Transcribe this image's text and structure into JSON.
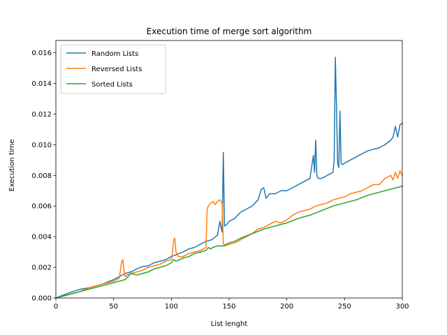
{
  "chart_data": {
    "type": "line",
    "title": "Execution time of merge sort algorithm",
    "xlabel": "List lenght",
    "ylabel": "Execution time",
    "xlim": [
      0,
      300
    ],
    "ylim": [
      0,
      0.0168
    ],
    "xticks": [
      0,
      50,
      100,
      150,
      200,
      250,
      300
    ],
    "xtick_labels": [
      "0",
      "50",
      "100",
      "150",
      "200",
      "250",
      "300"
    ],
    "yticks": [
      0,
      0.002,
      0.004,
      0.006,
      0.008,
      0.01,
      0.012,
      0.014,
      0.016
    ],
    "ytick_labels": [
      "0.000",
      "0.002",
      "0.004",
      "0.006",
      "0.008",
      "0.010",
      "0.012",
      "0.014",
      "0.016"
    ],
    "grid": false,
    "legend_position": "top-left",
    "series": [
      {
        "name": "Random Lists",
        "color": "#1f77b4",
        "x": [
          0,
          10,
          20,
          25,
          30,
          40,
          50,
          55,
          60,
          65,
          70,
          75,
          80,
          85,
          90,
          95,
          100,
          105,
          110,
          115,
          120,
          125,
          130,
          135,
          140,
          142,
          144,
          145,
          146,
          148,
          150,
          155,
          160,
          165,
          170,
          175,
          178,
          180,
          182,
          185,
          190,
          195,
          200,
          205,
          210,
          215,
          220,
          223,
          224,
          225,
          226,
          227,
          230,
          235,
          240,
          241,
          242,
          243,
          244,
          245,
          246,
          247,
          248,
          250,
          255,
          260,
          265,
          270,
          275,
          280,
          285,
          290,
          292,
          294,
          296,
          298,
          300
        ],
        "values": [
          0,
          0.0003,
          0.00055,
          0.00062,
          0.00068,
          0.0009,
          0.0012,
          0.0014,
          0.0016,
          0.0017,
          0.0019,
          0.00205,
          0.0021,
          0.0023,
          0.0024,
          0.0025,
          0.0027,
          0.00285,
          0.003,
          0.0032,
          0.0033,
          0.0035,
          0.0037,
          0.0038,
          0.0041,
          0.005,
          0.0043,
          0.0095,
          0.0047,
          0.0048,
          0.005,
          0.0052,
          0.0056,
          0.0058,
          0.006,
          0.0064,
          0.0071,
          0.0072,
          0.0065,
          0.0068,
          0.0068,
          0.007,
          0.007,
          0.0072,
          0.0074,
          0.0076,
          0.0078,
          0.0093,
          0.0082,
          0.0103,
          0.008,
          0.0078,
          0.0078,
          0.008,
          0.0082,
          0.009,
          0.0157,
          0.0125,
          0.0088,
          0.0085,
          0.0122,
          0.0088,
          0.0087,
          0.0088,
          0.009,
          0.0092,
          0.0094,
          0.0096,
          0.0097,
          0.0098,
          0.01,
          0.0103,
          0.0105,
          0.0112,
          0.0105,
          0.0113,
          0.0114
        ]
      },
      {
        "name": "Reversed Lists",
        "color": "#ff7f0e",
        "x": [
          0,
          10,
          20,
          30,
          40,
          50,
          55,
          57,
          58,
          59,
          60,
          62,
          65,
          70,
          75,
          80,
          85,
          90,
          95,
          100,
          101,
          102,
          103,
          104,
          106,
          110,
          115,
          120,
          125,
          130,
          131,
          132,
          133,
          134,
          136,
          138,
          140,
          142,
          144,
          145,
          146,
          150,
          155,
          160,
          170,
          175,
          180,
          185,
          190,
          195,
          200,
          205,
          210,
          215,
          220,
          225,
          230,
          235,
          240,
          245,
          250,
          255,
          260,
          265,
          270,
          275,
          280,
          285,
          290,
          292,
          294,
          296,
          298,
          300
        ],
        "values": [
          0,
          0.0002,
          0.0004,
          0.0007,
          0.0009,
          0.0011,
          0.0013,
          0.0024,
          0.0025,
          0.0018,
          0.0014,
          0.0015,
          0.0016,
          0.0017,
          0.0018,
          0.002,
          0.0021,
          0.0022,
          0.0024,
          0.0025,
          0.003,
          0.0038,
          0.0039,
          0.003,
          0.0027,
          0.0027,
          0.0029,
          0.003,
          0.0031,
          0.0033,
          0.0058,
          0.006,
          0.0061,
          0.0062,
          0.0063,
          0.0061,
          0.0063,
          0.0064,
          0.0062,
          0.0036,
          0.0034,
          0.0035,
          0.0036,
          0.0038,
          0.0042,
          0.0045,
          0.0046,
          0.0048,
          0.005,
          0.0049,
          0.0051,
          0.0054,
          0.0056,
          0.0057,
          0.0058,
          0.006,
          0.0061,
          0.0062,
          0.0064,
          0.0065,
          0.0066,
          0.0068,
          0.0069,
          0.007,
          0.0072,
          0.0074,
          0.0074,
          0.0078,
          0.008,
          0.0077,
          0.0082,
          0.0078,
          0.0083,
          0.008
        ]
      },
      {
        "name": "Sorted Lists",
        "color": "#2ca02c",
        "x": [
          0,
          10,
          20,
          30,
          40,
          50,
          60,
          65,
          70,
          75,
          80,
          85,
          90,
          95,
          100,
          102,
          104,
          110,
          115,
          120,
          125,
          130,
          132,
          134,
          136,
          140,
          145,
          150,
          155,
          160,
          170,
          180,
          190,
          200,
          210,
          220,
          230,
          240,
          250,
          260,
          270,
          280,
          285,
          290,
          295,
          300
        ],
        "values": [
          0,
          0.0002,
          0.0004,
          0.0006,
          0.0008,
          0.001,
          0.0012,
          0.0016,
          0.0015,
          0.0016,
          0.0017,
          0.0019,
          0.002,
          0.0021,
          0.0023,
          0.0025,
          0.0024,
          0.0026,
          0.0027,
          0.0029,
          0.003,
          0.0031,
          0.0033,
          0.0032,
          0.0033,
          0.0034,
          0.0034,
          0.0036,
          0.0037,
          0.0039,
          0.0042,
          0.0045,
          0.0047,
          0.0049,
          0.0052,
          0.0054,
          0.0057,
          0.006,
          0.0062,
          0.0064,
          0.0067,
          0.0069,
          0.007,
          0.0071,
          0.0072,
          0.0073
        ]
      }
    ]
  }
}
